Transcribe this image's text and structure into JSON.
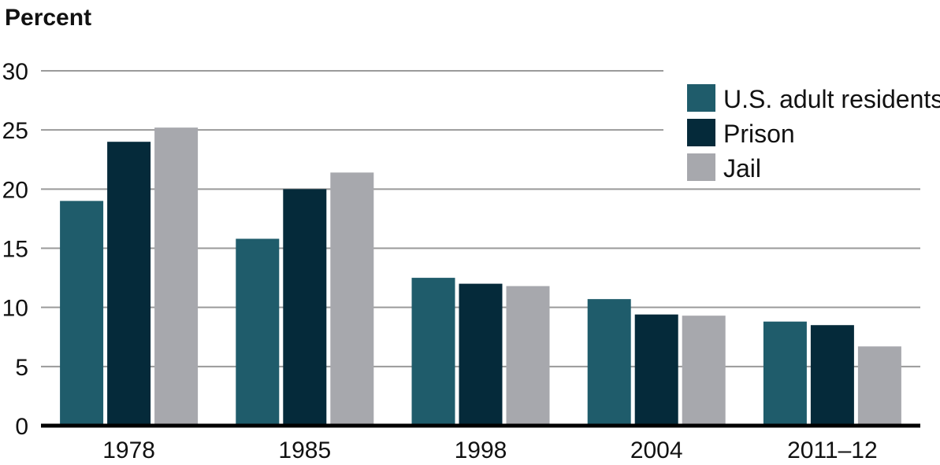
{
  "chart_data": {
    "type": "bar",
    "ylabel": "Percent",
    "xlabel": "",
    "ylim": [
      0,
      30
    ],
    "yticks": [
      0,
      5,
      10,
      15,
      20,
      25,
      30
    ],
    "ytick_labels": [
      "0",
      "5",
      "10",
      "15",
      "20",
      "25",
      "30"
    ],
    "categories": [
      "1978",
      "1985",
      "1998",
      "2004",
      "2011–12"
    ],
    "series": [
      {
        "name": "U.S. adult residents",
        "color": "#1f5c6b",
        "values": [
          19.0,
          15.8,
          12.5,
          10.7,
          8.8
        ]
      },
      {
        "name": "Prison",
        "color": "#052a3a",
        "values": [
          24.0,
          20.0,
          12.0,
          9.4,
          8.5
        ]
      },
      {
        "name": "Jail",
        "color": "#a7a8ad",
        "values": [
          25.2,
          21.4,
          11.8,
          9.3,
          6.7
        ]
      }
    ],
    "grid": true,
    "legend_position": "top-right"
  }
}
